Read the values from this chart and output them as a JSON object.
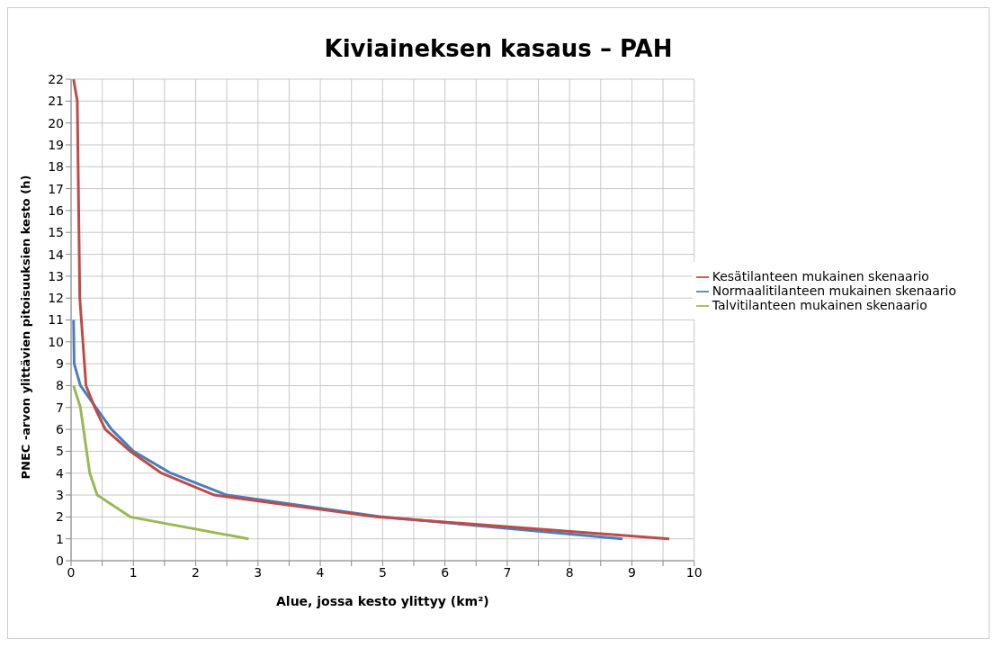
{
  "chart_data": {
    "type": "line",
    "title": "Kiviaineksen kasaus – PAH",
    "xlabel": "Alue, jossa kesto ylittyy (km²)",
    "ylabel": "PNEC -arvon ylittävien pitoisuuksien kesto (h)",
    "xlim": [
      0,
      10
    ],
    "xticks": [
      0,
      {
        "value": 0.5,
        "label": null
      },
      1,
      {
        "value": 1.5,
        "label": null
      },
      2,
      {
        "value": 2.5,
        "label": null
      },
      3,
      {
        "value": 3.5,
        "label": null
      },
      4,
      {
        "value": 4.5,
        "label": null
      },
      5,
      {
        "value": 5.5,
        "label": null
      },
      6,
      {
        "value": 6.5,
        "label": null
      },
      7,
      {
        "value": 7.5,
        "label": null
      },
      8,
      {
        "value": 8.5,
        "label": null
      },
      9,
      {
        "value": 9.5,
        "label": null
      },
      10
    ],
    "ylim": [
      0,
      22
    ],
    "yticks": [
      0,
      1,
      2,
      3,
      4,
      5,
      6,
      7,
      8,
      9,
      10,
      11,
      12,
      13,
      14,
      15,
      16,
      17,
      18,
      19,
      20,
      21,
      22
    ],
    "grid": true,
    "legend": "right",
    "marker": "none",
    "line_style": "solid",
    "series": [
      {
        "name": "Normaalitilanteen mukainen skenaario",
        "color": "#4a7ebb",
        "x": [
          0.04,
          0.05,
          0.15,
          0.4,
          0.65,
          1.0,
          1.6,
          2.5,
          5.0,
          8.85
        ],
        "values": [
          11,
          9,
          8,
          7,
          6,
          5,
          4,
          3,
          2,
          1
        ]
      },
      {
        "name": "Kesätilanteen mukainen skenaario",
        "color": "#be4b48",
        "x": [
          0.04,
          0.1,
          0.14,
          0.24,
          0.38,
          0.55,
          0.95,
          1.45,
          2.3,
          4.9,
          9.6
        ],
        "values": [
          22,
          21,
          12,
          8,
          7,
          6,
          5,
          4,
          3,
          2,
          1
        ]
      },
      {
        "name": "Talvitilanteen mukainen skenaario",
        "color": "#98b954",
        "x": [
          0.04,
          0.15,
          0.3,
          0.42,
          0.95,
          2.85
        ],
        "values": [
          8,
          7,
          4,
          3,
          2,
          1
        ]
      }
    ]
  }
}
